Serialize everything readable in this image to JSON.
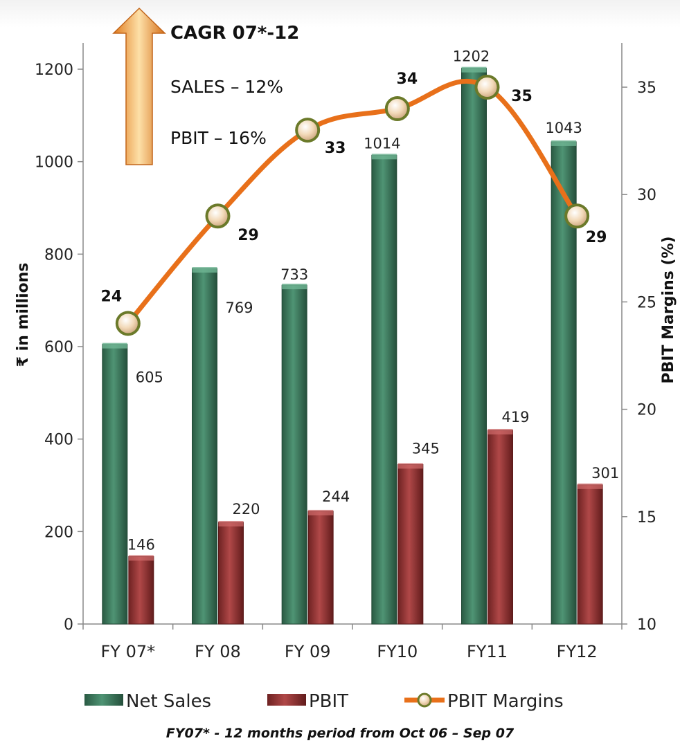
{
  "chart_data": {
    "type": "bar",
    "categories": [
      "FY 07*",
      "FY 08",
      "FY 09",
      "FY10",
      "FY11",
      "FY12"
    ],
    "series": [
      {
        "name": "Net Sales",
        "type": "bar",
        "axis": "left",
        "color": "#3d7a5e",
        "values": [
          605,
          769,
          733,
          1014,
          1202,
          1043
        ]
      },
      {
        "name": "PBIT",
        "type": "bar",
        "axis": "left",
        "color": "#8e3030",
        "values": [
          146,
          220,
          244,
          345,
          419,
          301
        ]
      },
      {
        "name": "PBIT Margins",
        "type": "line",
        "axis": "right",
        "color": "#e8701a",
        "values": [
          24,
          29,
          33,
          34,
          35,
          29
        ]
      }
    ],
    "ylabel": "₹ in millions",
    "ylabel_right": "PBIT   Margins (%)",
    "ylim": [
      0,
      1200
    ],
    "yticks": [
      0,
      200,
      400,
      600,
      800,
      1000,
      1200
    ],
    "ylim_right": [
      10,
      35
    ],
    "yticks_right": [
      10,
      15,
      20,
      25,
      30,
      35
    ],
    "grid": false,
    "legend_position": "bottom",
    "annotations": {
      "cagr_title": "CAGR 07*-12",
      "cagr_sales": "SALES – 12%",
      "cagr_pbit": "PBIT – 16%"
    },
    "footnote": "FY07* - 12 months period from Oct 06 – Sep 07"
  }
}
